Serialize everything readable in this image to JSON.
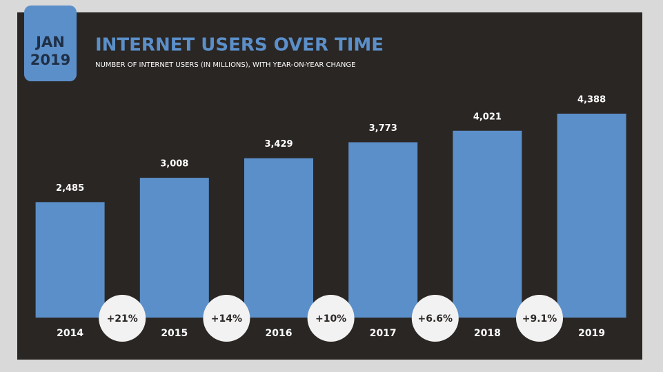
{
  "chart_data": {
    "type": "bar",
    "badge": {
      "month": "JAN",
      "year": "2019"
    },
    "title": "INTERNET USERS OVER TIME",
    "subtitle": "NUMBER OF INTERNET USERS (IN MILLIONS), WITH YEAR-ON-YEAR CHANGE",
    "categories": [
      "2014",
      "2015",
      "2016",
      "2017",
      "2018",
      "2019"
    ],
    "values": [
      2485,
      3008,
      3429,
      3773,
      4021,
      4388
    ],
    "value_labels": [
      "2,485",
      "3,008",
      "3,429",
      "3,773",
      "4,021",
      "4,388"
    ],
    "color": "#5b8fc9",
    "changes": [
      21,
      14,
      10,
      6.6,
      9.1
    ],
    "change_labels": [
      "+21%",
      "+14%",
      "+10%",
      "+6.6%",
      "+9.1%"
    ]
  }
}
